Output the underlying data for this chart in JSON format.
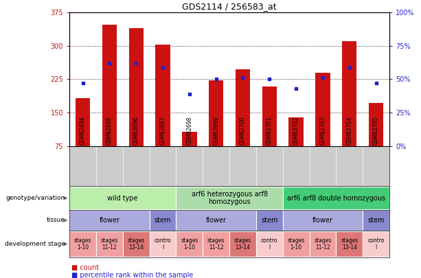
{
  "title": "GDS2114 / 256583_at",
  "samples": [
    "GSM62694",
    "GSM62695",
    "GSM62696",
    "GSM62697",
    "GSM62698",
    "GSM62699",
    "GSM62700",
    "GSM62701",
    "GSM62702",
    "GSM62703",
    "GSM62704",
    "GSM62705"
  ],
  "counts": [
    183,
    347,
    340,
    303,
    107,
    222,
    248,
    208,
    140,
    240,
    310,
    172
  ],
  "percentiles": [
    47,
    62,
    62,
    59,
    39,
    50,
    51,
    50,
    43,
    51,
    59,
    47
  ],
  "ymin": 75,
  "ymax": 375,
  "yticks": [
    75,
    150,
    225,
    300,
    375
  ],
  "pct_yticks": [
    0,
    25,
    50,
    75,
    100
  ],
  "bar_color": "#cc1111",
  "dot_color": "#2222cc",
  "chart_bg": "#ffffff",
  "sample_box_bg": "#cccccc",
  "genotype_groups": [
    {
      "label": "wild type",
      "start": 0,
      "end": 3,
      "color": "#bbeeaa"
    },
    {
      "label": "arf6 heterozygous arf8\nhomozygous",
      "start": 4,
      "end": 7,
      "color": "#aaddaa"
    },
    {
      "label": "arf6 arf8 double homozygous",
      "start": 8,
      "end": 11,
      "color": "#44cc77"
    }
  ],
  "tissue_groups": [
    {
      "label": "flower",
      "start": 0,
      "end": 2,
      "color": "#aaaadd"
    },
    {
      "label": "stem",
      "start": 3,
      "end": 3,
      "color": "#8888cc"
    },
    {
      "label": "flower",
      "start": 4,
      "end": 6,
      "color": "#aaaadd"
    },
    {
      "label": "stem",
      "start": 7,
      "end": 7,
      "color": "#8888cc"
    },
    {
      "label": "flower",
      "start": 8,
      "end": 10,
      "color": "#aaaadd"
    },
    {
      "label": "stem",
      "start": 11,
      "end": 11,
      "color": "#8888cc"
    }
  ],
  "dev_groups": [
    {
      "label": "stages\n1-10",
      "start": 0,
      "end": 0,
      "color": "#f0a0a0"
    },
    {
      "label": "stages\n11-12",
      "start": 1,
      "end": 1,
      "color": "#f0a0a0"
    },
    {
      "label": "stages\n13-14",
      "start": 2,
      "end": 2,
      "color": "#dd7777"
    },
    {
      "label": "contro\nl",
      "start": 3,
      "end": 3,
      "color": "#f8cccc"
    },
    {
      "label": "stages\n1-10",
      "start": 4,
      "end": 4,
      "color": "#f0a0a0"
    },
    {
      "label": "stages\n11-12",
      "start": 5,
      "end": 5,
      "color": "#f0a0a0"
    },
    {
      "label": "stages\n13-14",
      "start": 6,
      "end": 6,
      "color": "#dd7777"
    },
    {
      "label": "contro\nl",
      "start": 7,
      "end": 7,
      "color": "#f8cccc"
    },
    {
      "label": "stages\n1-10",
      "start": 8,
      "end": 8,
      "color": "#f0a0a0"
    },
    {
      "label": "stages\n11-12",
      "start": 9,
      "end": 9,
      "color": "#f0a0a0"
    },
    {
      "label": "stages\n13-14",
      "start": 10,
      "end": 10,
      "color": "#dd7777"
    },
    {
      "label": "contro\nl",
      "start": 11,
      "end": 11,
      "color": "#f8cccc"
    }
  ],
  "row_labels": [
    "genotype/variation",
    "tissue",
    "development stage"
  ],
  "legend_count_color": "#cc1111",
  "legend_dot_color": "#2222cc"
}
